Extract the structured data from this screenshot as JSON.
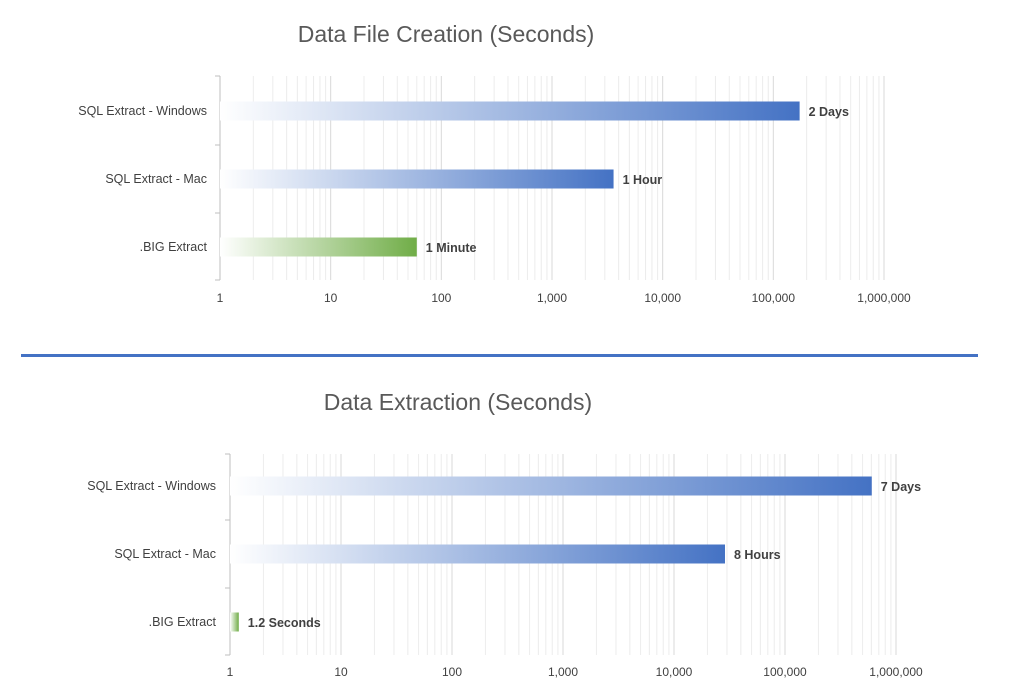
{
  "chart_data": [
    {
      "type": "bar",
      "orientation": "horizontal",
      "title": "Data File Creation (Seconds)",
      "xlabel": "",
      "ylabel": "",
      "x_scale": "log",
      "xlim": [
        1,
        1000000
      ],
      "grid": true,
      "categories": [
        "SQL Extract - Windows",
        "SQL Extract - Mac",
        ".BIG Extract"
      ],
      "values": [
        172800,
        3600,
        60
      ],
      "data_labels": [
        "2 Days",
        "1 Hour",
        "1 Minute"
      ],
      "bar_colors": [
        "#4472c4",
        "#4472c4",
        "#70ad47"
      ],
      "ticks": [
        1,
        10,
        100,
        1000,
        10000,
        100000,
        1000000
      ],
      "tick_labels": [
        "1",
        "10",
        "100",
        "1,000",
        "10,000",
        "100,000",
        "1,000,000"
      ]
    },
    {
      "type": "bar",
      "orientation": "horizontal",
      "title": "Data Extraction (Seconds)",
      "xlabel": "",
      "ylabel": "",
      "x_scale": "log",
      "xlim": [
        1,
        1000000
      ],
      "grid": true,
      "categories": [
        "SQL Extract - Windows",
        "SQL Extract - Mac",
        ".BIG Extract"
      ],
      "values": [
        604800,
        28800,
        1.2
      ],
      "data_labels": [
        "7 Days",
        "8 Hours",
        "1.2 Seconds"
      ],
      "bar_colors": [
        "#4472c4",
        "#4472c4",
        "#70ad47"
      ],
      "ticks": [
        1,
        10,
        100,
        1000,
        10000,
        100000,
        1000000
      ],
      "tick_labels": [
        "1",
        "10",
        "100",
        "1,000",
        "10,000",
        "100,000",
        "1,000,000"
      ]
    }
  ]
}
